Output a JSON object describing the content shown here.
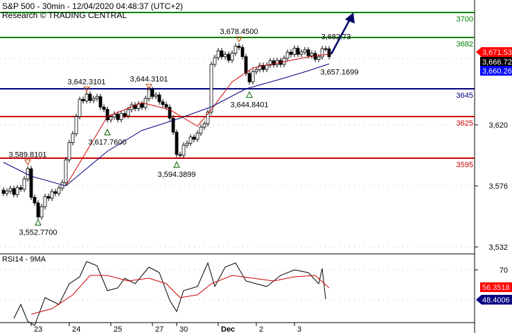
{
  "header": {
    "title": "S&P 500 - 30min - 12/04/2020 04:48:37 (UTC+2)",
    "source": "Research © TRADING CENTRAL"
  },
  "colors": {
    "support": "#cc0000",
    "resistance": "#008000",
    "pivot": "#000080",
    "ma_fast": "#cc0000",
    "ma_slow": "#000080",
    "candle": "#000000",
    "arrow": "#000066"
  },
  "chart_data": [
    {
      "type": "candlestick",
      "title": "S&P 500 - 30min",
      "ylim": [
        3520,
        3710
      ],
      "yticks": [
        "3,532",
        "3,576",
        "3,620"
      ],
      "xticks": [
        {
          "label": "23",
          "bar": 8
        },
        {
          "label": "24",
          "bar": 19
        },
        {
          "label": "25",
          "bar": 31
        },
        {
          "label": "27",
          "bar": 43
        },
        {
          "label": "30",
          "bar": 50
        },
        {
          "label": "Dec",
          "bar": 62
        },
        {
          "label": "2",
          "bar": 73
        },
        {
          "label": "3",
          "bar": 84
        }
      ],
      "levels": [
        {
          "value": 3700,
          "label": "3700",
          "kind": "resistance"
        },
        {
          "value": 3682,
          "label": "3682",
          "kind": "resistance"
        },
        {
          "value": 3645,
          "label": "3645",
          "kind": "pivot"
        },
        {
          "value": 3625,
          "label": "3625",
          "kind": "support"
        },
        {
          "value": 3595,
          "label": "3595",
          "kind": "support"
        }
      ],
      "price_tags": [
        {
          "value": 3671.53,
          "label": "3,671.53",
          "color": "#ff0000"
        },
        {
          "value": 3666.72,
          "label": "3,666.72",
          "color": "#000000"
        },
        {
          "value": 3660.26,
          "label": "3,660.26",
          "color": "#0000ff"
        }
      ],
      "close": [
        [
          0,
          3572
        ],
        [
          3,
          3570
        ],
        [
          5,
          3575
        ],
        [
          7,
          3585
        ],
        [
          8,
          3568
        ],
        [
          10,
          3555
        ],
        [
          12,
          3565
        ],
        [
          15,
          3572
        ],
        [
          17,
          3575
        ],
        [
          18,
          3595
        ],
        [
          20,
          3615
        ],
        [
          22,
          3635
        ],
        [
          24,
          3640
        ],
        [
          27,
          3637
        ],
        [
          30,
          3625
        ],
        [
          33,
          3624
        ],
        [
          36,
          3630
        ],
        [
          40,
          3634
        ],
        [
          42,
          3642
        ],
        [
          45,
          3638
        ],
        [
          48,
          3625
        ],
        [
          50,
          3600
        ],
        [
          51,
          3597
        ],
        [
          53,
          3607
        ],
        [
          57,
          3615
        ],
        [
          59,
          3627
        ],
        [
          60,
          3665
        ],
        [
          62,
          3670
        ],
        [
          65,
          3668
        ],
        [
          68,
          3676
        ],
        [
          69,
          3667
        ],
        [
          71,
          3650
        ],
        [
          73,
          3660
        ],
        [
          76,
          3662
        ],
        [
          80,
          3665
        ],
        [
          84,
          3673
        ],
        [
          88,
          3670
        ],
        [
          91,
          3668
        ],
        [
          93,
          3675
        ],
        [
          94,
          3667
        ]
      ],
      "ma_fast": [
        [
          18,
          3575
        ],
        [
          24,
          3600
        ],
        [
          30,
          3625
        ],
        [
          40,
          3635
        ],
        [
          48,
          3630
        ],
        [
          56,
          3618
        ],
        [
          60,
          3630
        ],
        [
          66,
          3650
        ],
        [
          72,
          3660
        ],
        [
          80,
          3664
        ],
        [
          88,
          3668
        ],
        [
          94,
          3670
        ]
      ],
      "ma_slow": [
        [
          0,
          3592
        ],
        [
          8,
          3582
        ],
        [
          18,
          3575
        ],
        [
          30,
          3600
        ],
        [
          40,
          3615
        ],
        [
          50,
          3623
        ],
        [
          60,
          3632
        ],
        [
          70,
          3645
        ],
        [
          80,
          3652
        ],
        [
          88,
          3658
        ],
        [
          94,
          3663
        ]
      ],
      "annotations": [
        {
          "label": "3,589.8101",
          "value": 3589.8101,
          "bar": 7,
          "marker": "top"
        },
        {
          "label": "3,552.7700",
          "value": 3552.77,
          "bar": 10,
          "marker": "bottom"
        },
        {
          "label": "3,642.3101",
          "value": 3642.3101,
          "bar": 24,
          "marker": "top"
        },
        {
          "label": "3,617.7600",
          "value": 3617.76,
          "bar": 30,
          "marker": "bottom"
        },
        {
          "label": "3,644.3101",
          "value": 3644.3101,
          "bar": 42,
          "marker": "top"
        },
        {
          "label": "3,594.3899",
          "value": 3594.3899,
          "bar": 50,
          "marker": "bottom"
        },
        {
          "label": "3,678.4500",
          "value": 3678.45,
          "bar": 68,
          "marker": "top"
        },
        {
          "label": "3,644.8401",
          "value": 3644.8401,
          "bar": 71,
          "marker": "bottom"
        },
        {
          "label": "3,657.1699",
          "value": 3657.1699,
          "bar": 95,
          "marker": "none"
        },
        {
          "label": "3,682.73",
          "value": 3682.73,
          "bar": 93,
          "marker": "none"
        }
      ]
    },
    {
      "type": "line",
      "title": "RSI14 - 9MA",
      "ylim": [
        25,
        80
      ],
      "yticks": [
        "70"
      ],
      "price_tags": [
        {
          "value": 56.3518,
          "label": "56.3518",
          "color": "#ff0000"
        },
        {
          "value": 48.4006,
          "label": "48.4006",
          "color": "#000080"
        }
      ],
      "rsi": [
        [
          3,
          35
        ],
        [
          5,
          45
        ],
        [
          7,
          33
        ],
        [
          9,
          30
        ],
        [
          12,
          50
        ],
        [
          16,
          45
        ],
        [
          19,
          60
        ],
        [
          22,
          65
        ],
        [
          24,
          76
        ],
        [
          27,
          73
        ],
        [
          30,
          55
        ],
        [
          33,
          57
        ],
        [
          35,
          64
        ],
        [
          38,
          60
        ],
        [
          42,
          72
        ],
        [
          45,
          68
        ],
        [
          48,
          48
        ],
        [
          50,
          40
        ],
        [
          52,
          55
        ],
        [
          56,
          58
        ],
        [
          59,
          75
        ],
        [
          61,
          58
        ],
        [
          64,
          72
        ],
        [
          67,
          75
        ],
        [
          70,
          62
        ],
        [
          73,
          60
        ],
        [
          76,
          58
        ],
        [
          80,
          66
        ],
        [
          84,
          70
        ],
        [
          88,
          68
        ],
        [
          91,
          60
        ],
        [
          92,
          71
        ],
        [
          93,
          49
        ]
      ],
      "rsi_ma": [
        [
          8,
          38
        ],
        [
          14,
          42
        ],
        [
          20,
          52
        ],
        [
          25,
          66
        ],
        [
          30,
          66
        ],
        [
          36,
          62
        ],
        [
          42,
          64
        ],
        [
          47,
          60
        ],
        [
          51,
          50
        ],
        [
          56,
          52
        ],
        [
          60,
          60
        ],
        [
          66,
          66
        ],
        [
          72,
          64
        ],
        [
          78,
          62
        ],
        [
          84,
          65
        ],
        [
          90,
          66
        ],
        [
          94,
          57
        ]
      ]
    }
  ]
}
